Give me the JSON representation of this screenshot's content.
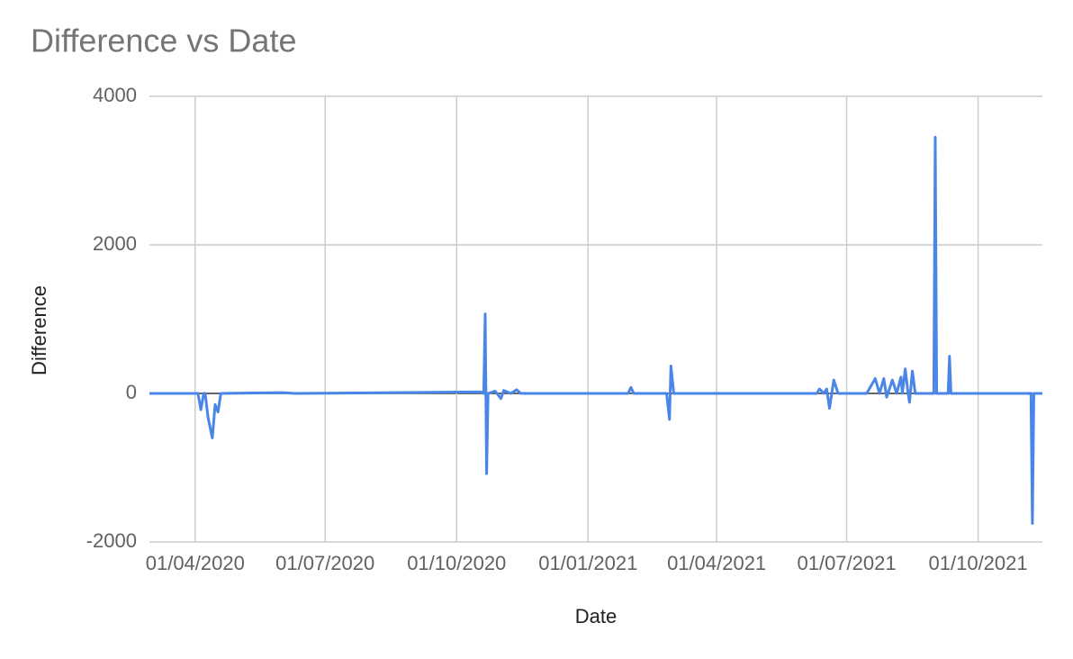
{
  "chart_data": {
    "type": "line",
    "title": "Difference vs Date",
    "x_label": "Date",
    "y_label": "Difference",
    "x": [
      "2020-02-29",
      "2020-03-28",
      "2020-04-03",
      "2020-04-05",
      "2020-04-07",
      "2020-04-08",
      "2020-04-10",
      "2020-04-13",
      "2020-04-15",
      "2020-04-17",
      "2020-04-19",
      "2020-06-01",
      "2020-06-10",
      "2020-10-18",
      "2020-10-20",
      "2020-10-21",
      "2020-10-22",
      "2020-10-23",
      "2020-10-28",
      "2020-11-01",
      "2020-11-03",
      "2020-11-08",
      "2020-11-12",
      "2020-11-15",
      "2021-01-29",
      "2021-01-31",
      "2021-02-02",
      "2021-02-25",
      "2021-02-27",
      "2021-02-28",
      "2021-03-02",
      "2021-06-10",
      "2021-06-12",
      "2021-06-15",
      "2021-06-17",
      "2021-06-19",
      "2021-06-22",
      "2021-06-25",
      "2021-07-15",
      "2021-07-21",
      "2021-07-24",
      "2021-07-27",
      "2021-07-29",
      "2021-08-02",
      "2021-08-05",
      "2021-08-08",
      "2021-08-09",
      "2021-08-11",
      "2021-08-13",
      "2021-08-14",
      "2021-08-16",
      "2021-08-18",
      "2021-08-31",
      "2021-09-01",
      "2021-09-02",
      "2021-09-10",
      "2021-09-11",
      "2021-09-12",
      "2021-11-07",
      "2021-11-08",
      "2021-11-09",
      "2021-11-15"
    ],
    "series": [
      {
        "name": "Difference",
        "color": "#4a86e8",
        "values": [
          0,
          0,
          0,
          -220,
          0,
          0,
          -320,
          -600,
          -150,
          -250,
          0,
          10,
          0,
          20,
          0,
          1070,
          -1080,
          0,
          30,
          -70,
          40,
          0,
          50,
          0,
          0,
          80,
          0,
          0,
          -350,
          370,
          0,
          0,
          60,
          0,
          60,
          -200,
          180,
          0,
          0,
          200,
          0,
          200,
          -50,
          180,
          0,
          220,
          0,
          330,
          0,
          -120,
          300,
          0,
          0,
          3450,
          0,
          0,
          500,
          0,
          0,
          -1750,
          0,
          0
        ]
      }
    ],
    "xlim": [
      "2020-02-29",
      "2021-11-15"
    ],
    "xticks": [
      {
        "value": "2020-04-01",
        "label": "01/04/2020"
      },
      {
        "value": "2020-07-01",
        "label": "01/07/2020"
      },
      {
        "value": "2020-10-01",
        "label": "01/10/2020"
      },
      {
        "value": "2021-01-01",
        "label": "01/01/2021"
      },
      {
        "value": "2021-04-01",
        "label": "01/04/2021"
      },
      {
        "value": "2021-07-01",
        "label": "01/07/2021"
      },
      {
        "value": "2021-10-01",
        "label": "01/10/2021"
      }
    ],
    "ylim": [
      -2000,
      4000
    ],
    "yticks": [
      -2000,
      0,
      2000,
      4000
    ],
    "grid": true
  }
}
